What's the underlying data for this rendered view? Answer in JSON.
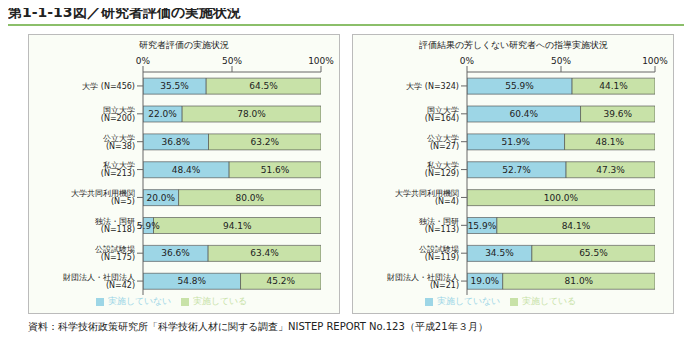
{
  "title": "第1-1-13図／研究者評価の実施状況",
  "source": "資料：科学技術政策研究所「科学技術人材に関する調査」NISTEP REPORT No.123（平成21年３月）",
  "chart_data": [
    {
      "type": "bar",
      "title": "研究者評価の実施状況",
      "orientation": "horizontal",
      "stacked": true,
      "data_labels": true,
      "grid": false,
      "legend": "bottom",
      "categories": [
        "大学 (N=456)",
        "国立大学 (N=200)",
        "公立大学 (N=38)",
        "私立大学 (N=213)",
        "大学共同利用機関 (N=5)",
        "独法・国研 (N=118)",
        "公設試験場 (N=175)",
        "財団法人・社団法人 (N=42)"
      ],
      "xlim": [
        0,
        100
      ],
      "xticks": [
        {
          "value": 0,
          "label": "0%"
        },
        {
          "value": 50,
          "label": "50%"
        },
        {
          "value": 100,
          "label": "100%"
        }
      ],
      "series": [
        {
          "name": "実施していない",
          "color": "#9dd6e6",
          "values": [
            35.5,
            22.0,
            36.8,
            48.4,
            20.0,
            5.9,
            36.6,
            54.8
          ],
          "value_labels": [
            "35.5%",
            "22.0%",
            "36.8%",
            "48.4%",
            "20.0%",
            "5.9%",
            "36.6%",
            "54.8%"
          ]
        },
        {
          "name": "実施している",
          "color": "#c8e2a8",
          "values": [
            64.5,
            78.0,
            63.2,
            51.6,
            80.0,
            94.1,
            63.4,
            45.2
          ],
          "value_labels": [
            "64.5%",
            "78.0%",
            "63.2%",
            "51.6%",
            "80.0%",
            "94.1%",
            "63.4%",
            "45.2%"
          ]
        }
      ]
    },
    {
      "type": "bar",
      "title": "評価結果の芳しくない研究者への指導実施状況",
      "orientation": "horizontal",
      "stacked": true,
      "data_labels": true,
      "grid": false,
      "legend": "bottom",
      "categories": [
        "大学 (N=324)",
        "国立大学 (N=164)",
        "公立大学 (N=27)",
        "私立大学 (N=129)",
        "大学共同利用機関 (N=4)",
        "独法・国研 (N=113)",
        "公設試験場 (N=119)",
        "財団法人・社団法人 (N=21)"
      ],
      "xlim": [
        0,
        100
      ],
      "xticks": [
        {
          "value": 0,
          "label": "0%"
        },
        {
          "value": 50,
          "label": "50%"
        },
        {
          "value": 100,
          "label": "100%"
        }
      ],
      "series": [
        {
          "name": "実施していない",
          "color": "#9dd6e6",
          "values": [
            55.9,
            60.4,
            51.9,
            52.7,
            0,
            15.9,
            34.5,
            19.0
          ],
          "value_labels": [
            "55.9%",
            "60.4%",
            "51.9%",
            "52.7%",
            null,
            "15.9%",
            "34.5%",
            "19.0%"
          ]
        },
        {
          "name": "実施している",
          "color": "#c8e2a8",
          "values": [
            44.1,
            39.6,
            48.1,
            47.3,
            100.0,
            84.1,
            65.5,
            81.0
          ],
          "value_labels": [
            "44.1%",
            "39.6%",
            "48.1%",
            "47.3%",
            "100.0%",
            "84.1%",
            "65.5%",
            "81.0%"
          ]
        }
      ]
    }
  ]
}
